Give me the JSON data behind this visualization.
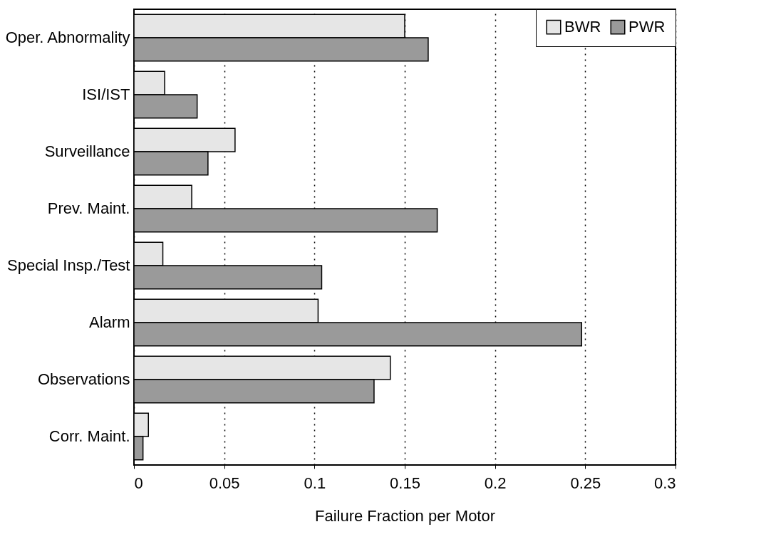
{
  "chart_data": {
    "type": "bar",
    "orientation": "horizontal",
    "xlabel": "Failure Fraction per Motor",
    "categories": [
      "Oper. Abnormality",
      "ISI/IST",
      "Surveillance",
      "Prev. Maint.",
      "Special Insp./Test",
      "Alarm",
      "Observations",
      "Corr. Maint."
    ],
    "series": [
      {
        "name": "BWR",
        "color": "#e6e6e6",
        "values": [
          0.15,
          0.017,
          0.056,
          0.032,
          0.016,
          0.102,
          0.142,
          0.008
        ]
      },
      {
        "name": "PWR",
        "color": "#9a9a9a",
        "values": [
          0.163,
          0.035,
          0.041,
          0.168,
          0.104,
          0.248,
          0.133,
          0.005
        ]
      }
    ],
    "xlim": [
      0,
      0.3
    ],
    "xticks": [
      0,
      0.05,
      0.1,
      0.15,
      0.2,
      0.25,
      0.3
    ],
    "grid": "x",
    "legend": "top right"
  }
}
